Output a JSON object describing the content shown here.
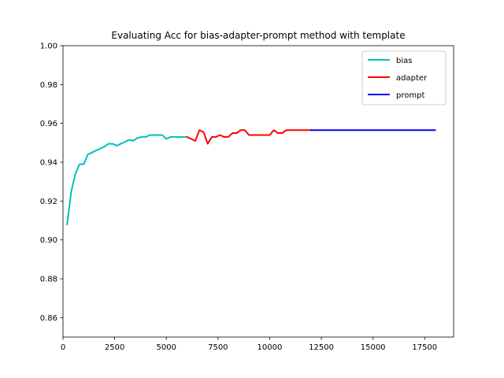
{
  "chart_data": {
    "type": "line",
    "title": "Evaluating Acc for bias-adapter-prompt method with template",
    "xlabel": "",
    "ylabel": "",
    "xlim": [
      0,
      18900
    ],
    "ylim": [
      0.85,
      1.0
    ],
    "xticks": [
      0,
      2500,
      5000,
      7500,
      10000,
      12500,
      15000,
      17500
    ],
    "yticks": [
      0.86,
      0.88,
      0.9,
      0.92,
      0.94,
      0.96,
      0.98,
      1.0
    ],
    "grid": false,
    "legend_position": "top-right",
    "series": [
      {
        "name": "bias",
        "color": "#00bfbf",
        "x": [
          200,
          400,
          600,
          800,
          1000,
          1200,
          1400,
          1600,
          1800,
          2000,
          2200,
          2400,
          2600,
          2800,
          3000,
          3200,
          3400,
          3600,
          3800,
          4000,
          4200,
          4400,
          4600,
          4800,
          5000,
          5200,
          5400,
          5600,
          5800,
          6000
        ],
        "y": [
          0.908,
          0.925,
          0.934,
          0.939,
          0.939,
          0.944,
          0.945,
          0.946,
          0.947,
          0.948,
          0.9495,
          0.9495,
          0.9485,
          0.9495,
          0.9505,
          0.9515,
          0.951,
          0.9525,
          0.953,
          0.953,
          0.954,
          0.954,
          0.954,
          0.954,
          0.952,
          0.953,
          0.953,
          0.953,
          0.953,
          0.953
        ]
      },
      {
        "name": "adapter",
        "color": "#ff0000",
        "x": [
          6000,
          6200,
          6400,
          6600,
          6800,
          7000,
          7200,
          7400,
          7600,
          7800,
          8000,
          8200,
          8400,
          8600,
          8800,
          9000,
          9200,
          9400,
          9600,
          9800,
          10000,
          10200,
          10400,
          10600,
          10800,
          11000,
          11200,
          11400,
          11600,
          11800,
          12000
        ],
        "y": [
          0.953,
          0.952,
          0.951,
          0.9565,
          0.9555,
          0.9495,
          0.953,
          0.953,
          0.954,
          0.953,
          0.953,
          0.955,
          0.955,
          0.9565,
          0.9565,
          0.954,
          0.954,
          0.954,
          0.954,
          0.954,
          0.954,
          0.9565,
          0.955,
          0.955,
          0.9565,
          0.9565,
          0.9565,
          0.9565,
          0.9565,
          0.9565,
          0.9565
        ]
      },
      {
        "name": "prompt",
        "color": "#0000ff",
        "x": [
          12000,
          13000,
          14000,
          15000,
          16000,
          17000,
          18000
        ],
        "y": [
          0.9565,
          0.9565,
          0.9565,
          0.9565,
          0.9565,
          0.9565,
          0.9565
        ]
      }
    ]
  }
}
